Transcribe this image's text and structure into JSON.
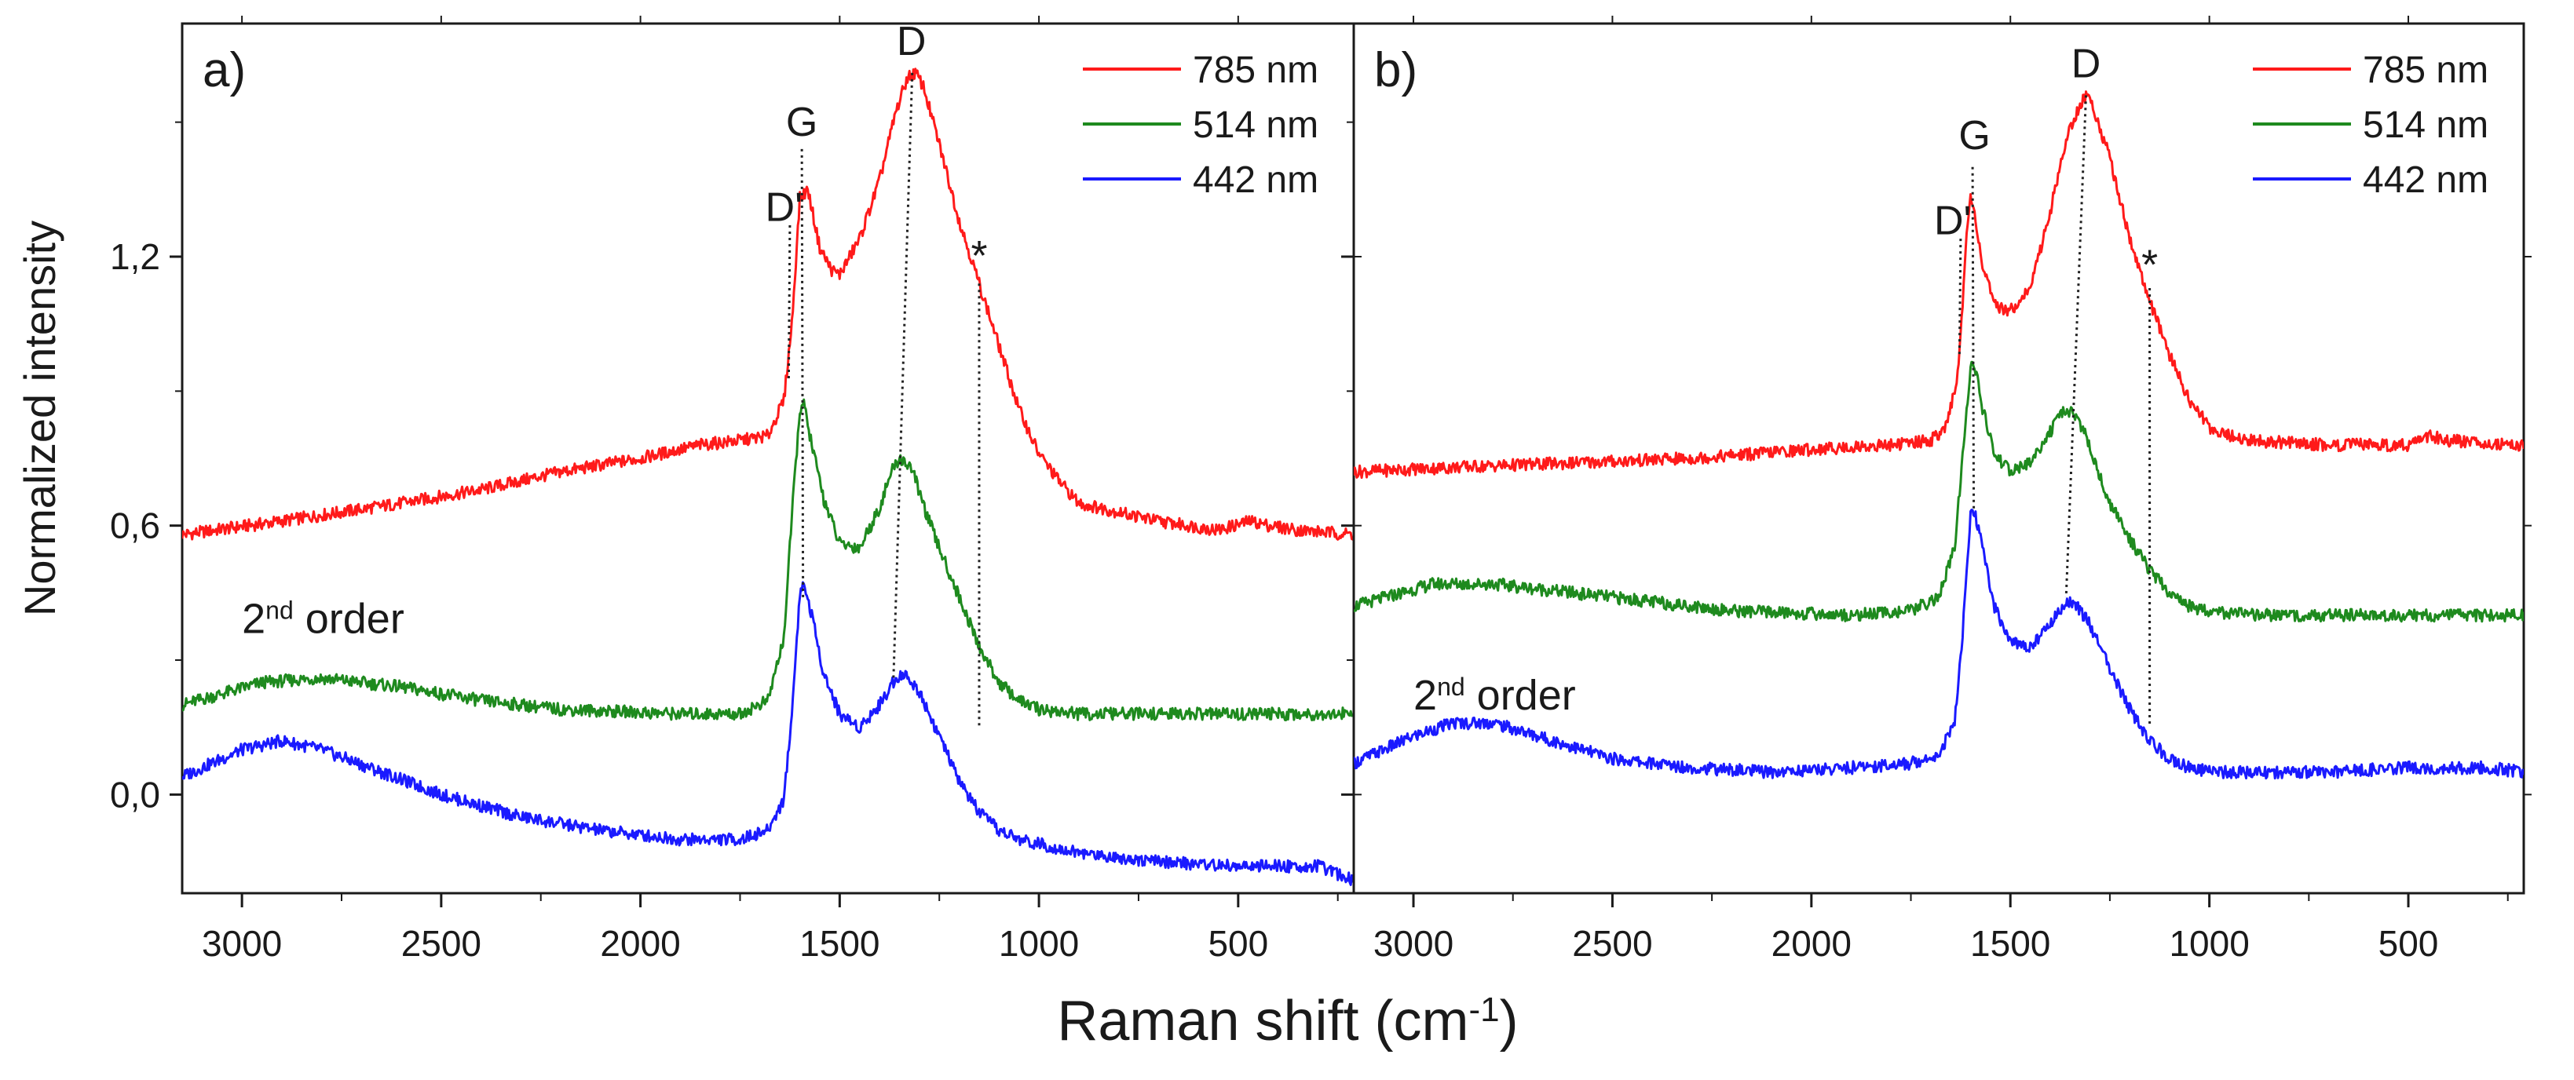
{
  "figure": {
    "xlabel_main": "Raman shift (cm",
    "xlabel_sup": "-1",
    "xlabel_end": ")",
    "ylabel": "Normalized intensity",
    "colors": {
      "785 nm": "#ff1a1a",
      "514 nm": "#1e8a1e",
      "442 nm": "#1a1aff",
      "axis": "#1a1a1a"
    }
  },
  "chart_data": [
    {
      "type": "line",
      "panel_label": "a)",
      "xlim": [
        3150,
        210
      ],
      "ylim": [
        -0.22,
        1.72
      ],
      "x_reversed": true,
      "xticks": [
        3000,
        2500,
        2000,
        1500,
        1000,
        500
      ],
      "xtick_labels": [
        "3000",
        "2500",
        "2000",
        "1500",
        "1000",
        "500"
      ],
      "yticks": [
        0.0,
        0.6,
        1.2
      ],
      "ytick_labels": [
        "0,0",
        "0,6",
        "1,2"
      ],
      "legend": [
        "785 nm",
        "514 nm",
        "442 nm"
      ],
      "legend_position": "top-right",
      "series": [
        {
          "name": "785 nm",
          "color": "#ff1a1a",
          "x": [
            3150,
            2900,
            2600,
            2400,
            2200,
            2000,
            1850,
            1750,
            1680,
            1640,
            1620,
            1600,
            1580,
            1550,
            1520,
            1500,
            1450,
            1400,
            1360,
            1330,
            1310,
            1290,
            1250,
            1200,
            1150,
            1100,
            1050,
            1000,
            950,
            900,
            850,
            700,
            550,
            470,
            420,
            350,
            210
          ],
          "y": [
            0.58,
            0.61,
            0.65,
            0.68,
            0.72,
            0.75,
            0.78,
            0.79,
            0.8,
            0.88,
            1.05,
            1.33,
            1.35,
            1.22,
            1.17,
            1.16,
            1.24,
            1.37,
            1.52,
            1.6,
            1.61,
            1.58,
            1.45,
            1.28,
            1.14,
            1.0,
            0.86,
            0.76,
            0.7,
            0.65,
            0.64,
            0.61,
            0.59,
            0.61,
            0.6,
            0.59,
            0.58
          ]
        },
        {
          "name": "514 nm",
          "color": "#1e8a1e",
          "x": [
            3150,
            2950,
            2800,
            2600,
            2400,
            2200,
            1900,
            1750,
            1680,
            1640,
            1620,
            1600,
            1590,
            1570,
            1540,
            1500,
            1450,
            1400,
            1370,
            1350,
            1320,
            1280,
            1250,
            1200,
            1150,
            1100,
            1050,
            1000,
            900,
            700,
            500,
            210
          ],
          "y": [
            0.2,
            0.25,
            0.26,
            0.24,
            0.21,
            0.19,
            0.18,
            0.18,
            0.21,
            0.35,
            0.62,
            0.86,
            0.87,
            0.78,
            0.66,
            0.56,
            0.55,
            0.64,
            0.72,
            0.75,
            0.73,
            0.62,
            0.55,
            0.44,
            0.33,
            0.25,
            0.21,
            0.19,
            0.18,
            0.18,
            0.18,
            0.18
          ]
        },
        {
          "name": "442 nm",
          "color": "#1a1aff",
          "x": [
            3150,
            3000,
            2900,
            2800,
            2650,
            2500,
            2300,
            2100,
            1900,
            1750,
            1680,
            1640,
            1620,
            1600,
            1590,
            1570,
            1540,
            1500,
            1450,
            1400,
            1360,
            1340,
            1300,
            1250,
            1200,
            1150,
            1100,
            1050,
            1000,
            900,
            700,
            500,
            300,
            210
          ],
          "y": [
            0.04,
            0.1,
            0.12,
            0.1,
            0.05,
            0.0,
            -0.05,
            -0.08,
            -0.1,
            -0.1,
            -0.08,
            -0.01,
            0.18,
            0.45,
            0.47,
            0.4,
            0.27,
            0.18,
            0.15,
            0.2,
            0.26,
            0.27,
            0.23,
            0.13,
            0.03,
            -0.04,
            -0.08,
            -0.1,
            -0.11,
            -0.13,
            -0.15,
            -0.16,
            -0.16,
            -0.19
          ]
        }
      ],
      "peak_labels": [
        {
          "text": "D'",
          "x": 1640,
          "y": 1.28
        },
        {
          "text": "G",
          "x": 1595,
          "y": 1.47
        },
        {
          "text": "D",
          "x": 1320,
          "y": 1.65
        },
        {
          "text": "*",
          "x": 1150,
          "y": 1.17
        }
      ],
      "guide_lines": [
        {
          "x1": 1625,
          "y1": 1.27,
          "x2": 1628,
          "y2": 0.92
        },
        {
          "x1": 1595,
          "y1": 1.44,
          "x2": 1592,
          "y2": 0.44
        },
        {
          "x1": 1318,
          "y1": 1.61,
          "x2": 1365,
          "y2": 0.26
        },
        {
          "x1": 1150,
          "y1": 1.14,
          "x2": 1150,
          "y2": 0.15
        }
      ],
      "order_label": {
        "text": "2",
        "sup": "nd",
        "rest": " order",
        "x": 3000,
        "y": 0.36
      }
    },
    {
      "type": "line",
      "panel_label": "b)",
      "xlim": [
        3150,
        210
      ],
      "ylim": [
        -0.22,
        1.72
      ],
      "x_reversed": true,
      "xticks": [
        3000,
        2500,
        2000,
        1500,
        1000,
        500
      ],
      "xtick_labels": [
        "3000",
        "2500",
        "2000",
        "1500",
        "1000",
        "500"
      ],
      "yticks": [
        0.0,
        0.6,
        1.2
      ],
      "ytick_labels": [
        "",
        "",
        ""
      ],
      "legend": [
        "785 nm",
        "514 nm",
        "442 nm"
      ],
      "legend_position": "top-right",
      "series": [
        {
          "name": "785 nm",
          "color": "#ff1a1a",
          "x": [
            3150,
            2900,
            2600,
            2300,
            2000,
            1800,
            1700,
            1660,
            1630,
            1610,
            1600,
            1590,
            1570,
            1540,
            1500,
            1450,
            1400,
            1360,
            1330,
            1310,
            1290,
            1250,
            1200,
            1150,
            1100,
            1050,
            1000,
            950,
            900,
            700,
            500,
            450,
            400,
            210
          ],
          "y": [
            0.72,
            0.73,
            0.74,
            0.75,
            0.77,
            0.78,
            0.79,
            0.82,
            0.95,
            1.25,
            1.33,
            1.3,
            1.18,
            1.09,
            1.08,
            1.13,
            1.3,
            1.46,
            1.53,
            1.56,
            1.53,
            1.42,
            1.24,
            1.1,
            0.98,
            0.88,
            0.82,
            0.8,
            0.79,
            0.78,
            0.78,
            0.8,
            0.79,
            0.78
          ]
        },
        {
          "name": "514 nm",
          "color": "#1e8a1e",
          "x": [
            3150,
            2950,
            2800,
            2600,
            2400,
            2200,
            1900,
            1750,
            1680,
            1640,
            1620,
            1600,
            1590,
            1570,
            1540,
            1500,
            1450,
            1400,
            1360,
            1340,
            1310,
            1280,
            1250,
            1200,
            1150,
            1100,
            1050,
            1000,
            900,
            700,
            500,
            210
          ],
          "y": [
            0.42,
            0.47,
            0.47,
            0.45,
            0.43,
            0.41,
            0.4,
            0.41,
            0.44,
            0.55,
            0.75,
            0.96,
            0.96,
            0.86,
            0.76,
            0.72,
            0.74,
            0.81,
            0.86,
            0.85,
            0.8,
            0.72,
            0.65,
            0.57,
            0.5,
            0.45,
            0.42,
            0.41,
            0.4,
            0.4,
            0.4,
            0.4
          ]
        },
        {
          "name": "442 nm",
          "color": "#1a1aff",
          "x": [
            3150,
            3000,
            2900,
            2800,
            2650,
            2500,
            2300,
            2100,
            1900,
            1750,
            1680,
            1640,
            1620,
            1600,
            1590,
            1570,
            1540,
            1500,
            1450,
            1400,
            1360,
            1340,
            1300,
            1250,
            1200,
            1150,
            1100,
            1050,
            1000,
            900,
            700,
            500,
            300,
            210
          ],
          "y": [
            0.07,
            0.13,
            0.16,
            0.16,
            0.12,
            0.08,
            0.06,
            0.05,
            0.06,
            0.07,
            0.09,
            0.16,
            0.36,
            0.62,
            0.63,
            0.55,
            0.42,
            0.34,
            0.33,
            0.38,
            0.43,
            0.43,
            0.38,
            0.28,
            0.19,
            0.12,
            0.08,
            0.06,
            0.05,
            0.05,
            0.05,
            0.06,
            0.06,
            0.05
          ]
        }
      ],
      "peak_labels": [
        {
          "text": "D'",
          "x": 1645,
          "y": 1.25
        },
        {
          "text": "G",
          "x": 1590,
          "y": 1.44
        },
        {
          "text": "D",
          "x": 1310,
          "y": 1.6
        },
        {
          "text": "*",
          "x": 1150,
          "y": 1.15
        }
      ],
      "guide_lines": [
        {
          "x1": 1625,
          "y1": 1.24,
          "x2": 1628,
          "y2": 0.98
        },
        {
          "x1": 1595,
          "y1": 1.4,
          "x2": 1592,
          "y2": 0.63
        },
        {
          "x1": 1310,
          "y1": 1.56,
          "x2": 1360,
          "y2": 0.44
        },
        {
          "x1": 1150,
          "y1": 1.13,
          "x2": 1150,
          "y2": 0.15
        }
      ],
      "order_label": {
        "text": "2",
        "sup": "nd",
        "rest": " order",
        "x": 3000,
        "y": 0.19
      }
    }
  ]
}
